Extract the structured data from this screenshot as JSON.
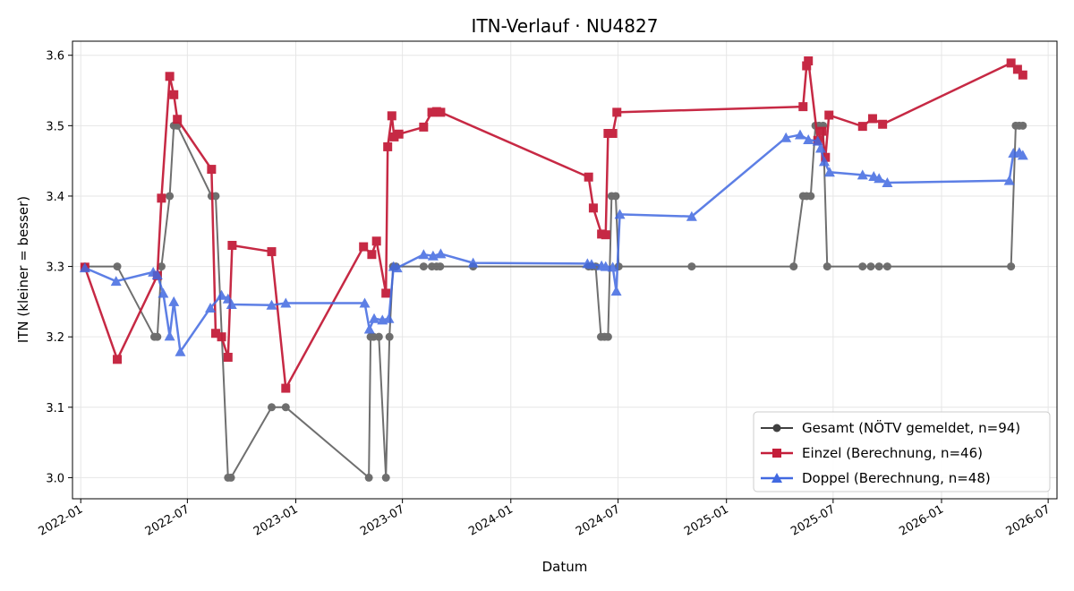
{
  "chart_data": {
    "type": "line",
    "title": "ITN-Verlauf · NU4827",
    "xlabel": "Datum",
    "ylabel": "ITN  (kleiner = besser)",
    "x_axis_type": "date",
    "xlim": [
      "2021-12-18",
      "2026-07-16"
    ],
    "ylim": [
      2.97,
      3.62
    ],
    "x_ticks": [
      "2022-01-01",
      "2022-07-01",
      "2023-01-01",
      "2023-07-01",
      "2024-01-01",
      "2024-07-01",
      "2025-01-01",
      "2025-07-01",
      "2026-01-01",
      "2026-07-01"
    ],
    "x_tick_labels": [
      "2022-01",
      "2022-07",
      "2023-01",
      "2023-07",
      "2024-01",
      "2024-07",
      "2025-01",
      "2025-07",
      "2026-01",
      "2026-07"
    ],
    "y_ticks": [
      3.0,
      3.1,
      3.2,
      3.3,
      3.4,
      3.5,
      3.6
    ],
    "y_tick_labels": [
      "3.0",
      "3.1",
      "3.2",
      "3.3",
      "3.4",
      "3.5",
      "3.6"
    ],
    "grid": true,
    "legend_position": "lower-right",
    "series": [
      {
        "name": "Gesamt (NÖTV gemeldet, n=94)",
        "color": "#404040",
        "marker": "circle",
        "points": [
          [
            "2022-01-08",
            3.3
          ],
          [
            "2022-03-04",
            3.3
          ],
          [
            "2022-05-06",
            3.2
          ],
          [
            "2022-05-11",
            3.2
          ],
          [
            "2022-05-18",
            3.3
          ],
          [
            "2022-06-01",
            3.4
          ],
          [
            "2022-06-08",
            3.5
          ],
          [
            "2022-06-14",
            3.5
          ],
          [
            "2022-08-11",
            3.4
          ],
          [
            "2022-08-18",
            3.4
          ],
          [
            "2022-09-08",
            3.0
          ],
          [
            "2022-09-13",
            3.0
          ],
          [
            "2022-11-21",
            3.1
          ],
          [
            "2022-12-15",
            3.1
          ],
          [
            "2023-05-05",
            3.0
          ],
          [
            "2023-05-08",
            3.2
          ],
          [
            "2023-05-13",
            3.2
          ],
          [
            "2023-05-22",
            3.2
          ],
          [
            "2023-06-03",
            3.0
          ],
          [
            "2023-06-09",
            3.2
          ],
          [
            "2023-06-15",
            3.3
          ],
          [
            "2023-06-20",
            3.3
          ],
          [
            "2023-08-06",
            3.3
          ],
          [
            "2023-08-20",
            3.3
          ],
          [
            "2023-08-28",
            3.3
          ],
          [
            "2023-09-03",
            3.3
          ],
          [
            "2023-10-29",
            3.3
          ],
          [
            "2024-05-12",
            3.3
          ],
          [
            "2024-05-18",
            3.3
          ],
          [
            "2024-05-24",
            3.3
          ],
          [
            "2024-06-02",
            3.2
          ],
          [
            "2024-06-08",
            3.2
          ],
          [
            "2024-06-14",
            3.2
          ],
          [
            "2024-06-20",
            3.4
          ],
          [
            "2024-06-27",
            3.4
          ],
          [
            "2024-07-02",
            3.3
          ],
          [
            "2024-11-03",
            3.3
          ],
          [
            "2025-04-25",
            3.3
          ],
          [
            "2025-05-11",
            3.4
          ],
          [
            "2025-05-17",
            3.4
          ],
          [
            "2025-05-24",
            3.4
          ],
          [
            "2025-06-01",
            3.5
          ],
          [
            "2025-06-07",
            3.5
          ],
          [
            "2025-06-14",
            3.5
          ],
          [
            "2025-06-21",
            3.3
          ],
          [
            "2025-08-20",
            3.3
          ],
          [
            "2025-09-03",
            3.3
          ],
          [
            "2025-09-17",
            3.3
          ],
          [
            "2025-10-01",
            3.3
          ],
          [
            "2026-04-29",
            3.3
          ],
          [
            "2026-05-07",
            3.5
          ],
          [
            "2026-05-13",
            3.5
          ],
          [
            "2026-05-19",
            3.5
          ]
        ]
      },
      {
        "name": "Einzel (Berechnung, n=46)",
        "color": "#c41e3a",
        "marker": "square",
        "points": [
          [
            "2022-01-08",
            3.299
          ],
          [
            "2022-03-04",
            3.168
          ],
          [
            "2022-05-11",
            3.287
          ],
          [
            "2022-05-18",
            3.397
          ],
          [
            "2022-06-01",
            3.57
          ],
          [
            "2022-06-08",
            3.544
          ],
          [
            "2022-06-14",
            3.509
          ],
          [
            "2022-08-11",
            3.438
          ],
          [
            "2022-08-18",
            3.205
          ],
          [
            "2022-08-28",
            3.2
          ],
          [
            "2022-09-08",
            3.171
          ],
          [
            "2022-09-15",
            3.33
          ],
          [
            "2022-11-21",
            3.321
          ],
          [
            "2022-12-15",
            3.127
          ],
          [
            "2023-04-26",
            3.328
          ],
          [
            "2023-05-10",
            3.317
          ],
          [
            "2023-05-18",
            3.336
          ],
          [
            "2023-06-03",
            3.262
          ],
          [
            "2023-06-06",
            3.47
          ],
          [
            "2023-06-13",
            3.514
          ],
          [
            "2023-06-17",
            3.484
          ],
          [
            "2023-06-25",
            3.488
          ],
          [
            "2023-08-06",
            3.498
          ],
          [
            "2023-08-20",
            3.519
          ],
          [
            "2023-08-28",
            3.52
          ],
          [
            "2023-09-04",
            3.519
          ],
          [
            "2024-05-12",
            3.427
          ],
          [
            "2024-05-20",
            3.383
          ],
          [
            "2024-06-03",
            3.346
          ],
          [
            "2024-06-10",
            3.345
          ],
          [
            "2024-06-14",
            3.489
          ],
          [
            "2024-06-22",
            3.489
          ],
          [
            "2024-06-29",
            3.519
          ],
          [
            "2025-05-11",
            3.527
          ],
          [
            "2025-05-17",
            3.585
          ],
          [
            "2025-05-20",
            3.592
          ],
          [
            "2025-06-05",
            3.479
          ],
          [
            "2025-06-12",
            3.492
          ],
          [
            "2025-06-18",
            3.455
          ],
          [
            "2025-06-24",
            3.515
          ],
          [
            "2025-08-20",
            3.499
          ],
          [
            "2025-09-06",
            3.51
          ],
          [
            "2025-09-23",
            3.502
          ],
          [
            "2026-04-29",
            3.589
          ],
          [
            "2026-05-10",
            3.58
          ],
          [
            "2026-05-19",
            3.572
          ]
        ]
      },
      {
        "name": "Doppel (Berechnung, n=48)",
        "color": "#4169e1",
        "marker": "triangle",
        "points": [
          [
            "2022-01-08",
            3.298
          ],
          [
            "2022-03-02",
            3.279
          ],
          [
            "2022-05-04",
            3.292
          ],
          [
            "2022-05-11",
            3.288
          ],
          [
            "2022-05-21",
            3.262
          ],
          [
            "2022-06-01",
            3.201
          ],
          [
            "2022-06-08",
            3.25
          ],
          [
            "2022-06-19",
            3.179
          ],
          [
            "2022-08-09",
            3.241
          ],
          [
            "2022-08-28",
            3.259
          ],
          [
            "2022-09-08",
            3.254
          ],
          [
            "2022-09-14",
            3.246
          ],
          [
            "2022-11-21",
            3.245
          ],
          [
            "2022-12-15",
            3.248
          ],
          [
            "2023-04-28",
            3.248
          ],
          [
            "2023-05-06",
            3.211
          ],
          [
            "2023-05-14",
            3.226
          ],
          [
            "2023-05-28",
            3.224
          ],
          [
            "2023-06-08",
            3.226
          ],
          [
            "2023-06-16",
            3.3
          ],
          [
            "2023-06-22",
            3.298
          ],
          [
            "2023-08-06",
            3.317
          ],
          [
            "2023-08-22",
            3.315
          ],
          [
            "2023-09-04",
            3.318
          ],
          [
            "2023-10-29",
            3.305
          ],
          [
            "2024-05-10",
            3.304
          ],
          [
            "2024-05-17",
            3.303
          ],
          [
            "2024-06-03",
            3.301
          ],
          [
            "2024-06-10",
            3.3
          ],
          [
            "2024-06-22",
            3.299
          ],
          [
            "2024-06-28",
            3.265
          ],
          [
            "2024-07-04",
            3.374
          ],
          [
            "2024-11-03",
            3.371
          ],
          [
            "2025-04-12",
            3.483
          ],
          [
            "2025-05-06",
            3.487
          ],
          [
            "2025-05-20",
            3.48
          ],
          [
            "2025-06-05",
            3.478
          ],
          [
            "2025-06-10",
            3.468
          ],
          [
            "2025-06-16",
            3.449
          ],
          [
            "2025-06-25",
            3.434
          ],
          [
            "2025-08-20",
            3.43
          ],
          [
            "2025-09-08",
            3.428
          ],
          [
            "2025-09-17",
            3.425
          ],
          [
            "2025-10-01",
            3.419
          ],
          [
            "2026-04-26",
            3.422
          ],
          [
            "2026-05-03",
            3.461
          ],
          [
            "2026-05-13",
            3.462
          ],
          [
            "2026-05-19",
            3.458
          ]
        ]
      }
    ]
  }
}
